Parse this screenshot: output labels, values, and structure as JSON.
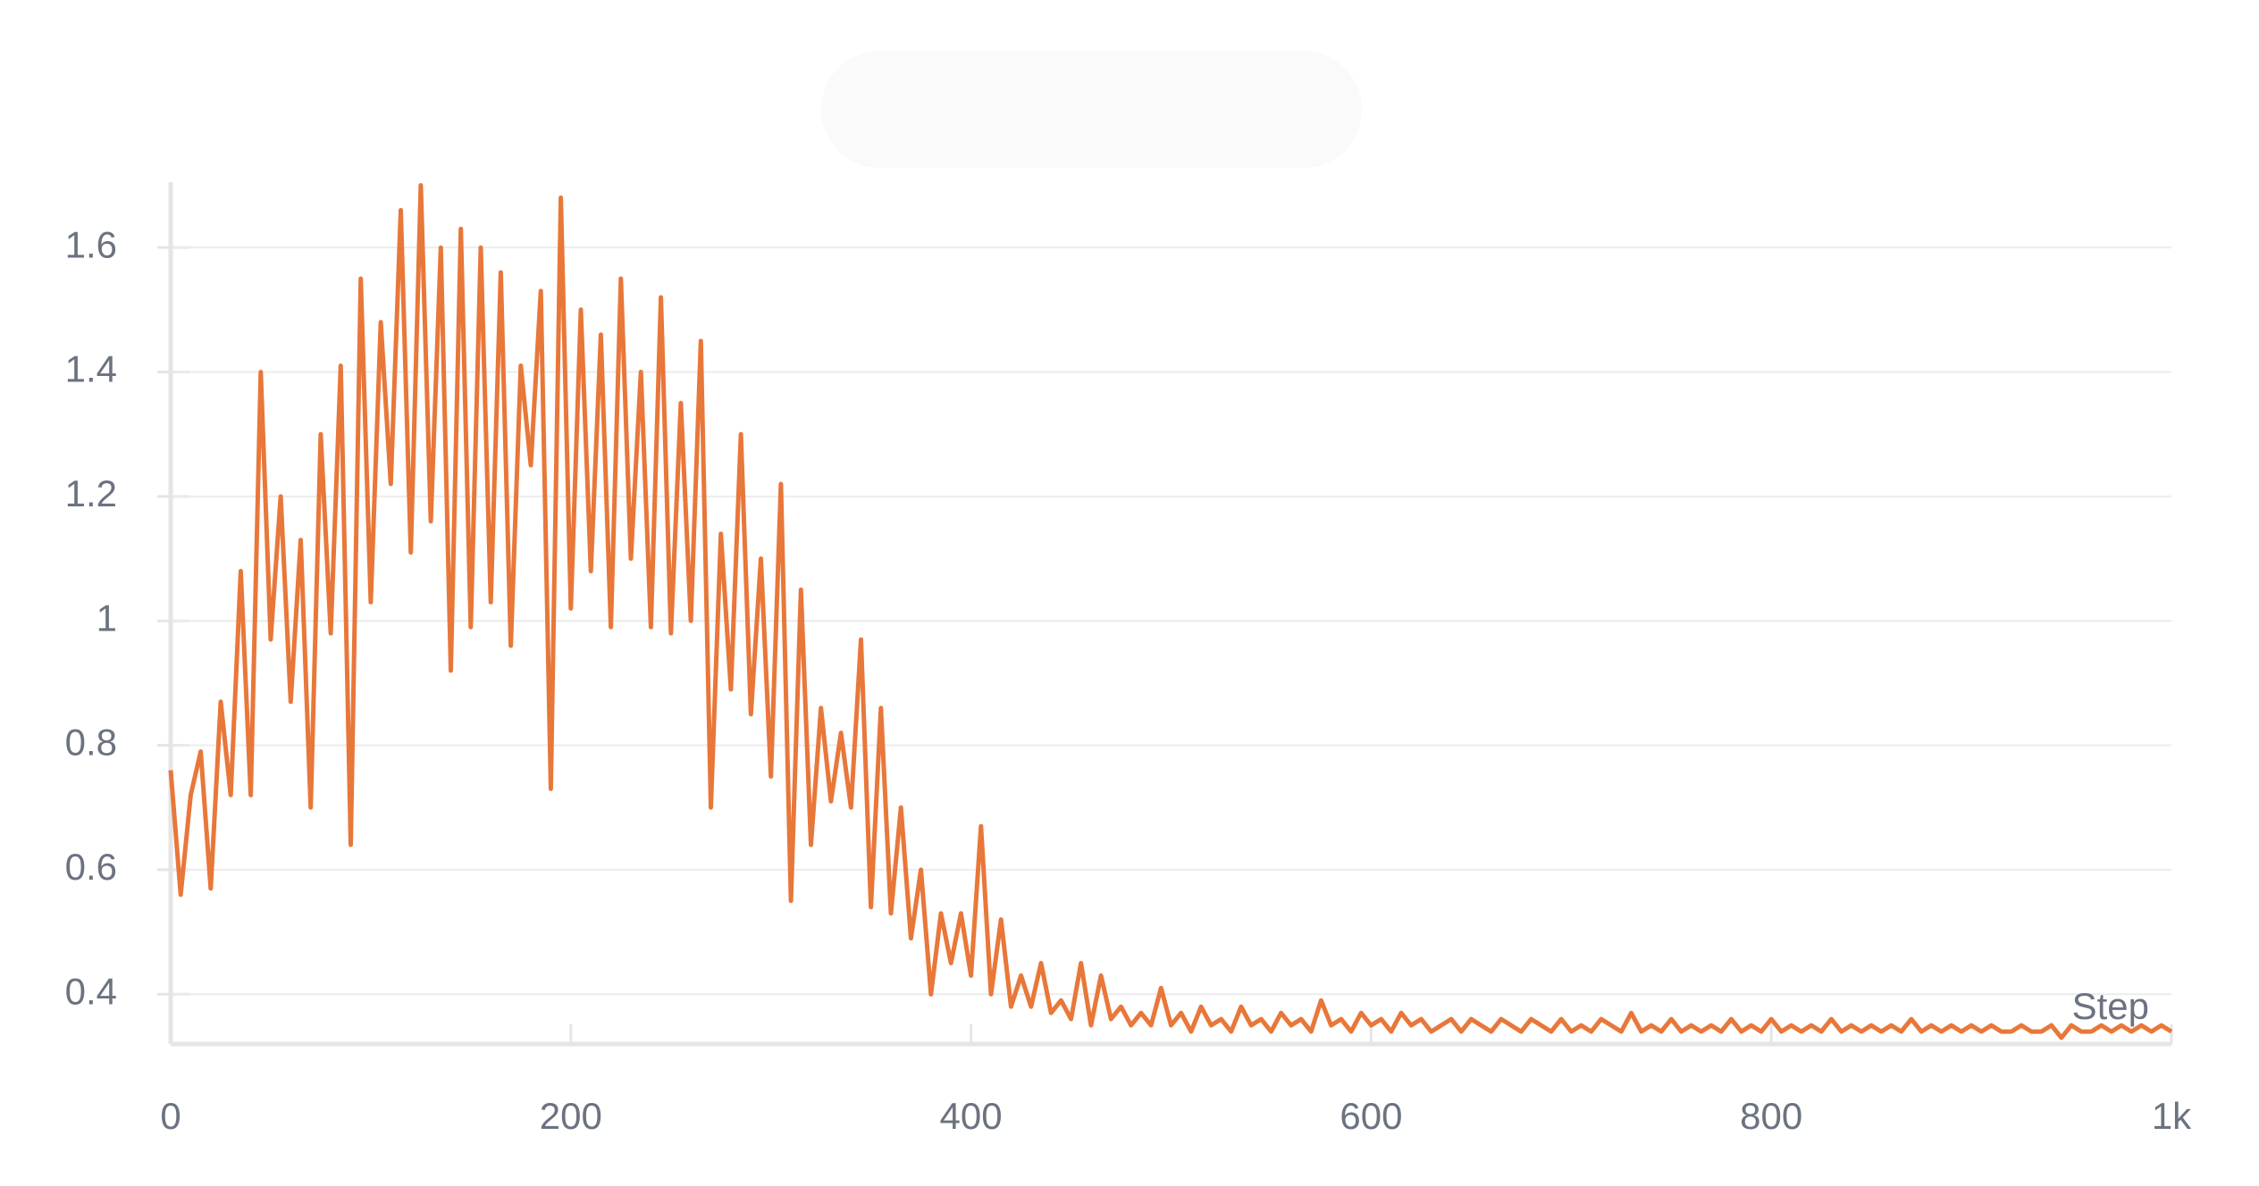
{
  "chart_data": {
    "type": "line",
    "x_label": "Step",
    "xlim": [
      0,
      1000
    ],
    "xticks": [
      0,
      200,
      400,
      600,
      800,
      {
        "value": 1000,
        "label": "1k"
      }
    ],
    "ylim": [
      0.32,
      1.705
    ],
    "yticks": [
      0.4,
      0.6,
      0.8,
      1,
      1.2,
      1.4,
      1.6
    ],
    "grid": true,
    "series": [
      {
        "color": "#e8773a",
        "x": [
          0,
          5,
          10,
          15,
          20,
          25,
          30,
          35,
          40,
          45,
          50,
          55,
          60,
          65,
          70,
          75,
          80,
          85,
          90,
          95,
          100,
          105,
          110,
          115,
          120,
          125,
          130,
          135,
          140,
          145,
          150,
          155,
          160,
          165,
          170,
          175,
          180,
          185,
          190,
          195,
          200,
          205,
          210,
          215,
          220,
          225,
          230,
          235,
          240,
          245,
          250,
          255,
          260,
          265,
          270,
          275,
          280,
          285,
          290,
          295,
          300,
          305,
          310,
          315,
          320,
          325,
          330,
          335,
          340,
          345,
          350,
          355,
          360,
          365,
          370,
          375,
          380,
          385,
          390,
          395,
          400,
          405,
          410,
          415,
          420,
          425,
          430,
          435,
          440,
          445,
          450,
          455,
          460,
          465,
          470,
          475,
          480,
          485,
          490,
          495,
          500,
          505,
          510,
          515,
          520,
          525,
          530,
          535,
          540,
          545,
          550,
          555,
          560,
          565,
          570,
          575,
          580,
          585,
          590,
          595,
          600,
          605,
          610,
          615,
          620,
          625,
          630,
          635,
          640,
          645,
          650,
          655,
          660,
          665,
          670,
          675,
          680,
          685,
          690,
          695,
          700,
          705,
          710,
          715,
          720,
          725,
          730,
          735,
          740,
          745,
          750,
          755,
          760,
          765,
          770,
          775,
          780,
          785,
          790,
          795,
          800,
          805,
          810,
          815,
          820,
          825,
          830,
          835,
          840,
          845,
          850,
          855,
          860,
          865,
          870,
          875,
          880,
          885,
          890,
          895,
          900,
          905,
          910,
          915,
          920,
          925,
          930,
          935,
          940,
          945,
          950,
          955,
          960,
          965,
          970,
          975,
          980,
          985,
          990,
          995,
          1000
        ],
        "values": [
          0.76,
          0.56,
          0.72,
          0.79,
          0.57,
          0.87,
          0.72,
          1.08,
          0.72,
          1.4,
          0.97,
          1.2,
          0.87,
          1.13,
          0.7,
          1.3,
          0.98,
          1.41,
          0.64,
          1.55,
          1.03,
          1.48,
          1.22,
          1.66,
          1.11,
          1.7,
          1.16,
          1.6,
          0.92,
          1.63,
          0.99,
          1.6,
          1.03,
          1.56,
          0.96,
          1.41,
          1.25,
          1.53,
          0.73,
          1.68,
          1.02,
          1.5,
          1.08,
          1.46,
          0.99,
          1.55,
          1.1,
          1.4,
          0.99,
          1.52,
          0.98,
          1.35,
          1.0,
          1.45,
          0.7,
          1.14,
          0.89,
          1.3,
          0.85,
          1.1,
          0.75,
          1.22,
          0.55,
          1.05,
          0.64,
          0.86,
          0.71,
          0.82,
          0.7,
          0.97,
          0.54,
          0.86,
          0.53,
          0.7,
          0.49,
          0.6,
          0.4,
          0.53,
          0.45,
          0.53,
          0.43,
          0.67,
          0.4,
          0.52,
          0.38,
          0.43,
          0.38,
          0.45,
          0.37,
          0.39,
          0.36,
          0.45,
          0.35,
          0.43,
          0.36,
          0.38,
          0.35,
          0.37,
          0.35,
          0.41,
          0.35,
          0.37,
          0.34,
          0.38,
          0.35,
          0.36,
          0.34,
          0.38,
          0.35,
          0.36,
          0.34,
          0.37,
          0.35,
          0.36,
          0.34,
          0.39,
          0.35,
          0.36,
          0.34,
          0.37,
          0.35,
          0.36,
          0.34,
          0.37,
          0.35,
          0.36,
          0.34,
          0.35,
          0.36,
          0.34,
          0.36,
          0.35,
          0.34,
          0.36,
          0.35,
          0.34,
          0.36,
          0.35,
          0.34,
          0.36,
          0.34,
          0.35,
          0.34,
          0.36,
          0.35,
          0.34,
          0.37,
          0.34,
          0.35,
          0.34,
          0.36,
          0.34,
          0.35,
          0.34,
          0.35,
          0.34,
          0.36,
          0.34,
          0.35,
          0.34,
          0.36,
          0.34,
          0.35,
          0.34,
          0.35,
          0.34,
          0.36,
          0.34,
          0.35,
          0.34,
          0.35,
          0.34,
          0.35,
          0.34,
          0.36,
          0.34,
          0.35,
          0.34,
          0.35,
          0.34,
          0.35,
          0.34,
          0.35,
          0.34,
          0.34,
          0.35,
          0.34,
          0.34,
          0.35,
          0.33,
          0.35,
          0.34,
          0.34,
          0.35,
          0.34,
          0.35,
          0.34,
          0.35,
          0.34,
          0.35,
          0.34
        ]
      }
    ]
  }
}
